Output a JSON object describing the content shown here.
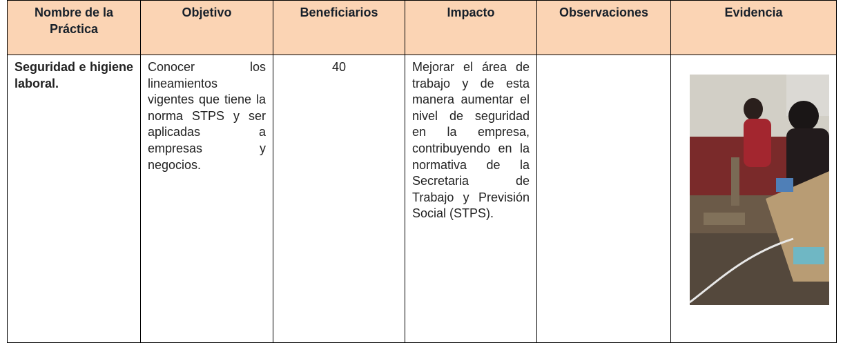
{
  "table": {
    "header": [
      "Nombre de la Práctica",
      "Objetivo",
      "Beneficiarios",
      "Impacto",
      "Observaciones",
      "Evidencia"
    ],
    "rows": [
      [
        "Seguridad e higiene laboral.",
        "Conocer los lineamientos vigentes que tiene la norma STPS y ser aplicadas a empresas y negocios.",
        40,
        "Mejorar el área de trabajo y de esta manera aumentar el nivel de seguridad en la empresa, contribuyendo en la normativa de la Secretaria de Trabajo y Previsión Social (STPS)."
      ]
    ]
  }
}
